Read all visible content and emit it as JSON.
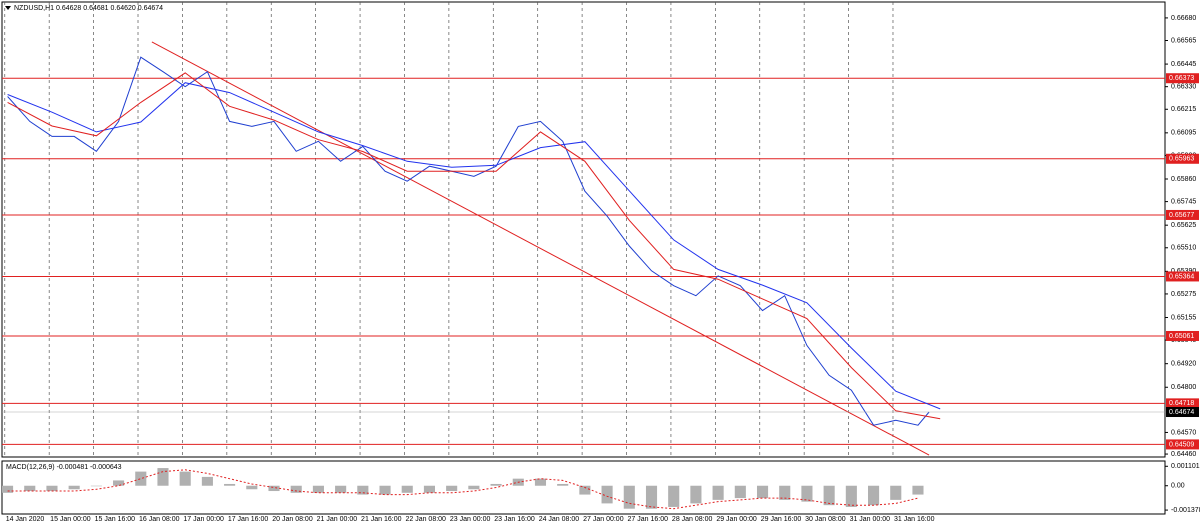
{
  "chart_data": [
    {
      "type": "line",
      "title": "NZDUSD,H1  0.64628 0.64681 0.64620 0.64674",
      "xlim": [
        -2,
        417
      ],
      "ylim": [
        0.64445,
        0.66761
      ],
      "xticks": [
        {
          "value": -1,
          "label": "14 Jan 2020"
        },
        {
          "value": 15,
          "label": "15 Jan 00:00"
        },
        {
          "value": 31,
          "label": "15 Jan 16:00"
        },
        {
          "value": 47,
          "label": "16 Jan 08:00"
        },
        {
          "value": 63,
          "label": "17 Jan 00:00"
        },
        {
          "value": 79,
          "label": "17 Jan 16:00"
        },
        {
          "value": 95,
          "label": "20 Jan 08:00"
        },
        {
          "value": 111,
          "label": "21 Jan 00:00"
        },
        {
          "value": 127,
          "label": "21 Jan 16:00"
        },
        {
          "value": 143,
          "label": "22 Jan 08:00"
        },
        {
          "value": 159,
          "label": "23 Jan 00:00"
        },
        {
          "value": 175,
          "label": "23 Jan 16:00"
        },
        {
          "value": 191,
          "label": "24 Jan 08:00"
        },
        {
          "value": 207,
          "label": "27 Jan 00:00"
        },
        {
          "value": 223,
          "label": "27 Jan 16:00"
        },
        {
          "value": 239,
          "label": "28 Jan 08:00"
        },
        {
          "value": 255,
          "label": "29 Jan 00:00"
        },
        {
          "value": 271,
          "label": "29 Jan 16:00"
        },
        {
          "value": 287,
          "label": "30 Jan 08:00"
        },
        {
          "value": 303,
          "label": "31 Jan 00:00"
        },
        {
          "value": 319,
          "label": "31 Jan 16:00"
        }
      ],
      "yticks": [
        {
          "value": 0.6668,
          "label": "0.66680"
        },
        0.66565,
        0.66445,
        {
          "value": 0.6633,
          "label": "0.66330"
        },
        0.66215,
        0.66095,
        {
          "value": 0.6598,
          "label": "0.65980"
        },
        {
          "value": 0.6586,
          "label": "0.65860"
        },
        0.65745,
        0.65625,
        {
          "value": 0.6551,
          "label": "0.65510"
        },
        {
          "value": 0.6539,
          "label": "0.65390"
        },
        0.65275,
        0.65155,
        {
          "value": 0.6504,
          "label": "0.65040"
        },
        {
          "value": 0.6492,
          "label": "0.64920"
        },
        {
          "value": 0.648,
          "label": "0.64800"
        },
        {
          "value": 0.6457,
          "label": "0.64570"
        },
        {
          "value": 0.6446,
          "label": "0.64460"
        }
      ],
      "series": [
        {
          "color": "#1f3fd0",
          "x": [
            0,
            8,
            16,
            24,
            32,
            40,
            48,
            56,
            64,
            72,
            80,
            88,
            96,
            104,
            112,
            120,
            128,
            136,
            144,
            152,
            160,
            168,
            176,
            184,
            192,
            200,
            208,
            216,
            224,
            232,
            240,
            248,
            256,
            264,
            272,
            280,
            288,
            296,
            304,
            312,
            320,
            328,
            332
          ],
          "values": [
            0.6628,
            0.66153,
            0.66077,
            0.66077,
            0.66001,
            0.66153,
            0.6648,
            0.66406,
            0.6633,
            0.66406,
            0.66153,
            0.66128,
            0.66153,
            0.66001,
            0.66052,
            0.6595,
            0.66026,
            0.659,
            0.65849,
            0.65925,
            0.659,
            0.65874,
            0.65925,
            0.66128,
            0.66153,
            0.66052,
            0.65798,
            0.65671,
            0.65519,
            0.65393,
            0.65317,
            0.65266,
            0.65367,
            0.65317,
            0.6519,
            0.65266,
            0.65013,
            0.64861,
            0.64785,
            0.64607,
            0.64632,
            0.64607,
            0.64674
          ]
        },
        {
          "color": "#2233ee",
          "x": [
            0,
            16,
            32,
            48,
            64,
            80,
            96,
            112,
            128,
            144,
            160,
            176,
            192,
            208,
            224,
            240,
            256,
            272,
            288,
            304,
            320,
            336
          ],
          "values": [
            0.6629,
            0.662,
            0.661,
            0.6615,
            0.6635,
            0.663,
            0.662,
            0.661,
            0.6603,
            0.6595,
            0.6592,
            0.6593,
            0.6602,
            0.6605,
            0.658,
            0.6555,
            0.654,
            0.6532,
            0.6523,
            0.65,
            0.6478,
            0.6469
          ]
        },
        {
          "color": "#e02020",
          "x": [
            0,
            16,
            32,
            48,
            64,
            80,
            96,
            112,
            128,
            144,
            160,
            176,
            192,
            208,
            224,
            240,
            256,
            272,
            288,
            304,
            320,
            336
          ],
          "values": [
            0.6625,
            0.6613,
            0.6608,
            0.6625,
            0.664,
            0.6623,
            0.6616,
            0.6606,
            0.66,
            0.659,
            0.659,
            0.659,
            0.661,
            0.6595,
            0.6565,
            0.654,
            0.6535,
            0.6525,
            0.6515,
            0.649,
            0.6468,
            0.6464
          ]
        }
      ],
      "trendline": {
        "color": "#e02020",
        "x": [
          52,
          332
        ],
        "values": [
          0.66558,
          0.64455
        ]
      },
      "levels": [
        0.66373,
        0.65963,
        0.65677,
        0.65364,
        0.65061,
        0.64718,
        0.64509
      ],
      "level_color": "#e02020",
      "current_price": 0.64674
    },
    {
      "type": "macd",
      "title": "MACD(12,26,9) -0.000481 -0.000643",
      "xlim": [
        -2,
        417
      ],
      "ylim": [
        -0.0016,
        0.0014
      ],
      "yticks": [
        0.001101,
        {
          "value": 0,
          "label": "0.00"
        },
        -0.001378
      ],
      "x": [
        0,
        8,
        16,
        24,
        32,
        40,
        48,
        56,
        64,
        72,
        80,
        88,
        96,
        104,
        112,
        120,
        128,
        136,
        144,
        152,
        160,
        168,
        176,
        184,
        192,
        200,
        208,
        216,
        224,
        232,
        240,
        248,
        256,
        264,
        272,
        280,
        288,
        296,
        304,
        312,
        320,
        328
      ],
      "histogram": {
        "color": "#b0b0b0",
        "values": [
          -0.0004,
          -0.0003,
          -0.0003,
          -0.0002,
          0,
          0.0003,
          0.0008,
          0.001,
          0.0008,
          0.0005,
          0.0001,
          -0.0002,
          -0.0003,
          -0.0004,
          -0.0004,
          -0.0004,
          -0.0005,
          -0.0005,
          -0.0004,
          -0.0004,
          -0.0003,
          -0.0002,
          0.0001,
          0.0004,
          0.0004,
          0.0001,
          -0.0005,
          -0.001,
          -0.0013,
          -0.0013,
          -0.0012,
          -0.001,
          -0.0008,
          -0.0007,
          -0.0007,
          -0.0008,
          -0.0009,
          -0.0011,
          -0.0012,
          -0.0011,
          -0.0008,
          -0.0005
        ]
      },
      "signal": {
        "color": "#e02020",
        "values": [
          -0.0003,
          -0.0003,
          -0.0003,
          -0.0003,
          -0.0002,
          0,
          0.0004,
          0.0008,
          0.0009,
          0.0007,
          0.0004,
          0.0001,
          -0.0001,
          -0.0003,
          -0.0004,
          -0.0004,
          -0.0004,
          -0.0005,
          -0.0005,
          -0.0004,
          -0.0004,
          -0.0003,
          -0.0001,
          0.0002,
          0.0004,
          0.0003,
          -0.0001,
          -0.0006,
          -0.001,
          -0.0012,
          -0.0013,
          -0.0011,
          -0.0009,
          -0.0008,
          -0.0007,
          -0.0007,
          -0.0008,
          -0.001,
          -0.0011,
          -0.0011,
          -0.001,
          -0.0007
        ]
      }
    }
  ]
}
